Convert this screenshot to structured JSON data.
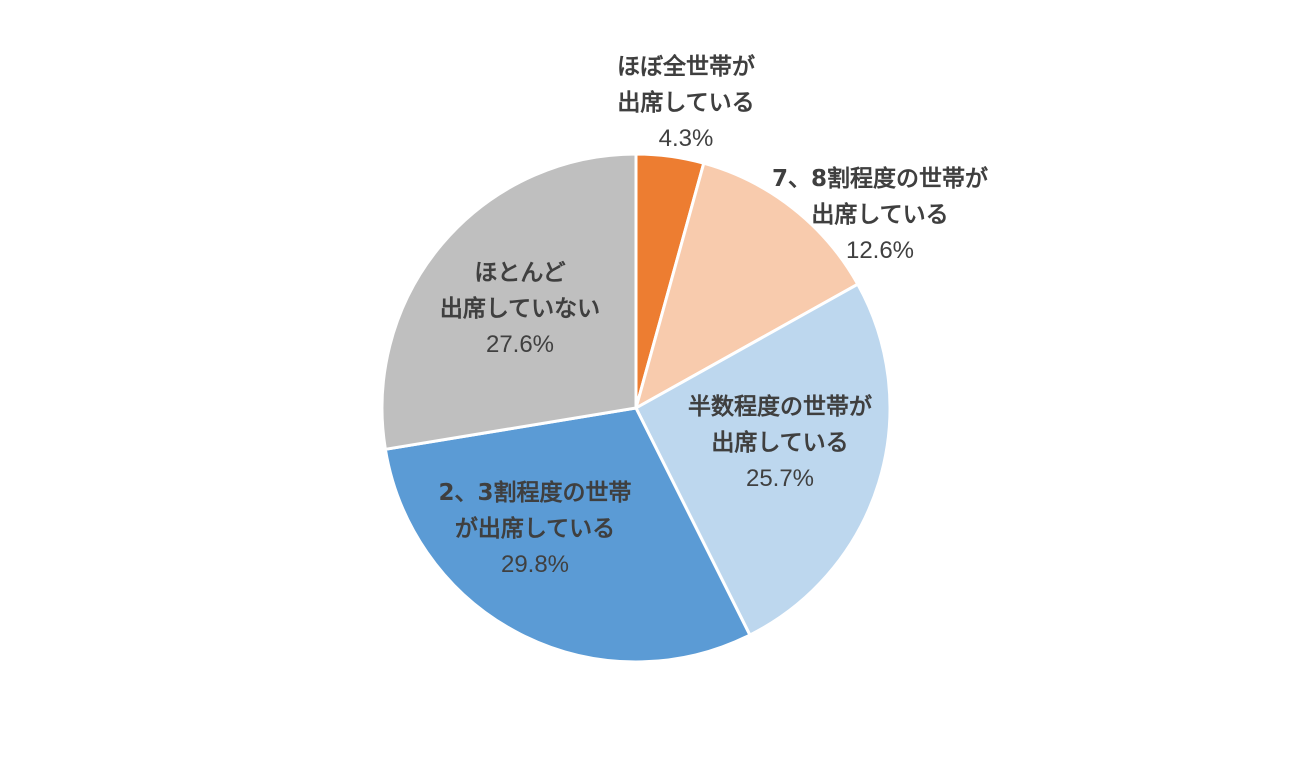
{
  "chart_data": {
    "type": "pie",
    "title": "",
    "legend": "none",
    "unit": "%",
    "slices": [
      {
        "label_lines": [
          "ほぼ全世帯が",
          "出席している"
        ],
        "value": 4.3,
        "value_label": "4.3%",
        "color": "#ed7d31"
      },
      {
        "label_lines": [
          "7、8割程度の世帯が",
          "出席している"
        ],
        "value": 12.6,
        "value_label": "12.6%",
        "color": "#f8cbad"
      },
      {
        "label_lines": [
          "半数程度の世帯が",
          "出席している"
        ],
        "value": 25.7,
        "value_label": "25.7%",
        "color": "#bdd7ee"
      },
      {
        "label_lines": [
          "2、3割程度の世帯",
          "が出席している"
        ],
        "value": 29.8,
        "value_label": "29.8%",
        "color": "#5b9bd5"
      },
      {
        "label_lines": [
          "ほとんど",
          "出席していない"
        ],
        "value": 27.6,
        "value_label": "27.6%",
        "color": "#bfbfbf"
      }
    ]
  }
}
